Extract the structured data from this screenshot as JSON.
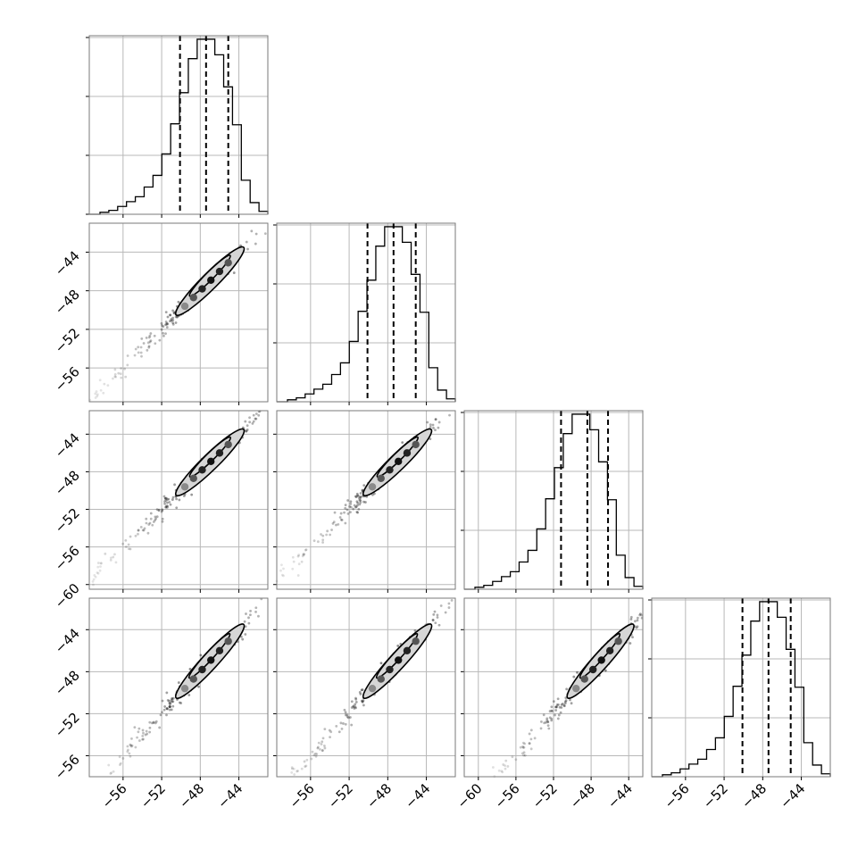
{
  "chart_data": {
    "type": "corner",
    "grid": true,
    "variables": 4,
    "diag_ranges": [
      [
        -59.5,
        -41.0
      ],
      [
        -59.5,
        -41.0
      ],
      [
        -61.5,
        -42.5
      ],
      [
        -59.5,
        -41.0
      ]
    ],
    "y_ranges": [
      null,
      [
        -59.5,
        -41.0
      ],
      [
        -60.5,
        -41.5
      ],
      [
        -58.0,
        -41.0
      ]
    ],
    "x_ticks": [
      [
        -56,
        -52,
        -48,
        -44
      ],
      [
        -56,
        -52,
        -48,
        -44
      ],
      [
        -60,
        -56,
        -52,
        -48,
        -44
      ],
      [
        -56,
        -52,
        -48,
        -44
      ]
    ],
    "y_ticks": [
      null,
      [
        -44,
        -48,
        -52,
        -56
      ],
      [
        -44,
        -48,
        -52,
        -56,
        -60
      ],
      [
        -44,
        -48,
        -52,
        -56
      ]
    ],
    "x_tick_labels": [
      [
        "−56",
        "−52",
        "−48",
        "−44"
      ],
      [
        "−56",
        "−52",
        "−48",
        "−44"
      ],
      [
        "−60",
        "−56",
        "−52",
        "−48",
        "−44"
      ],
      [
        "−56",
        "−52",
        "−48",
        "−44"
      ]
    ],
    "y_tick_labels": [
      null,
      [
        "−44",
        "−48",
        "−52",
        "−56"
      ],
      [
        "−44",
        "−48",
        "−52",
        "−56",
        "−60"
      ],
      [
        "−44",
        "−48",
        "−52",
        "−56"
      ]
    ],
    "quantiles": [
      [
        -50.1,
        -47.4,
        -45.1
      ],
      [
        -50.1,
        -47.4,
        -45.1
      ],
      [
        -51.2,
        -48.4,
        -46.2
      ],
      [
        -50.1,
        -47.4,
        -45.1
      ]
    ],
    "histogram_counts": [
      2,
      4,
      8,
      13,
      18,
      28,
      40,
      62,
      93,
      125,
      160,
      180,
      180,
      164,
      131,
      92,
      35,
      12,
      3
    ],
    "contour_cells": [
      {
        "row": 1,
        "col": 0
      },
      {
        "row": 2,
        "col": 0
      },
      {
        "row": 2,
        "col": 1
      },
      {
        "row": 3,
        "col": 0
      },
      {
        "row": 3,
        "col": 1
      },
      {
        "row": 3,
        "col": 2
      }
    ]
  }
}
